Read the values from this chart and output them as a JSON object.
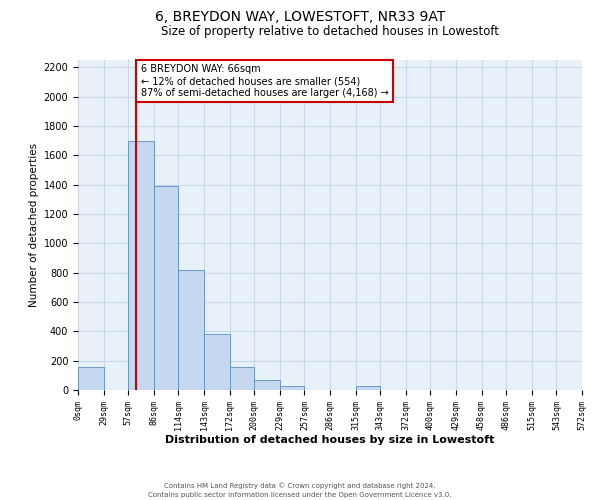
{
  "title": "6, BREYDON WAY, LOWESTOFT, NR33 9AT",
  "subtitle": "Size of property relative to detached houses in Lowestoft",
  "xlabel": "Distribution of detached houses by size in Lowestoft",
  "ylabel": "Number of detached properties",
  "bin_edges": [
    0,
    29,
    57,
    86,
    114,
    143,
    172,
    200,
    229,
    257,
    286,
    315,
    343,
    372,
    400,
    429,
    458,
    486,
    515,
    543,
    572
  ],
  "bar_heights": [
    155,
    0,
    1700,
    1390,
    820,
    380,
    160,
    65,
    30,
    0,
    0,
    25,
    0,
    0,
    0,
    0,
    0,
    0,
    0,
    0
  ],
  "bar_color": "#c5d8f0",
  "bar_edge_color": "#5a8fc3",
  "vline_color": "#cc0000",
  "vline_x": 66,
  "annotation_text": "6 BREYDON WAY: 66sqm\n← 12% of detached houses are smaller (554)\n87% of semi-detached houses are larger (4,168) →",
  "annotation_box_color": "#ffffff",
  "annotation_box_edge": "#cc0000",
  "ylim": [
    0,
    2250
  ],
  "yticks": [
    0,
    200,
    400,
    600,
    800,
    1000,
    1200,
    1400,
    1600,
    1800,
    2000,
    2200
  ],
  "tick_labels": [
    "0sqm",
    "29sqm",
    "57sqm",
    "86sqm",
    "114sqm",
    "143sqm",
    "172sqm",
    "200sqm",
    "229sqm",
    "257sqm",
    "286sqm",
    "315sqm",
    "343sqm",
    "372sqm",
    "400sqm",
    "429sqm",
    "458sqm",
    "486sqm",
    "515sqm",
    "543sqm",
    "572sqm"
  ],
  "footer1": "Contains HM Land Registry data © Crown copyright and database right 2024.",
  "footer2": "Contains public sector information licensed under the Open Government Licence v3.0.",
  "background_color": "#ffffff",
  "grid_color": "#c8d8e8",
  "title_fontsize": 10,
  "subtitle_fontsize": 8.5,
  "ax_facecolor": "#e8f0f8"
}
